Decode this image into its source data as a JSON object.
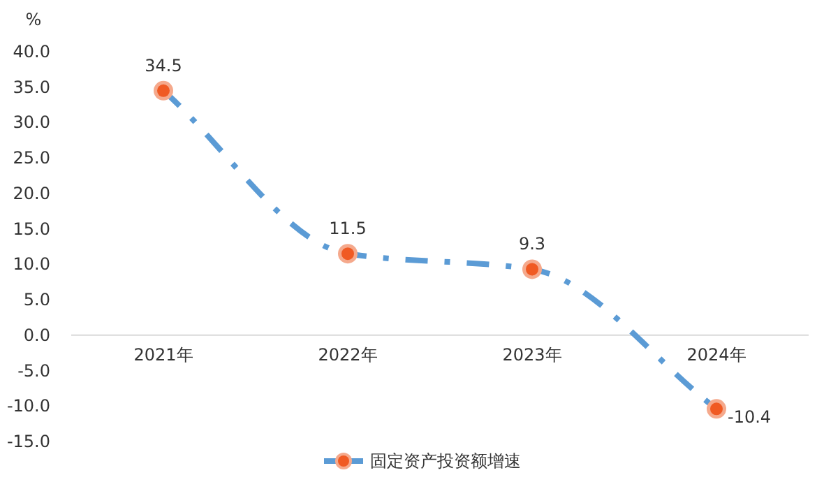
{
  "chart_data": {
    "type": "line",
    "ylabel": "%",
    "categories": [
      "2021年",
      "2022年",
      "2023年",
      "2024年"
    ],
    "series": [
      {
        "name": "固定资产投资额增速",
        "color": "#5b9bd5",
        "values": [
          34.5,
          11.5,
          9.3,
          -10.4
        ]
      }
    ],
    "ylim": [
      -15,
      40
    ],
    "yticks": [
      {
        "value": -15,
        "label": "-15.0"
      },
      {
        "value": -10,
        "label": "-10.0"
      },
      {
        "value": -5,
        "label": "-5.0"
      },
      {
        "value": 0,
        "label": "0.0"
      },
      {
        "value": 5,
        "label": "5.0"
      },
      {
        "value": 10,
        "label": "10.0"
      },
      {
        "value": 15,
        "label": "15.0"
      },
      {
        "value": 20,
        "label": "20.0"
      },
      {
        "value": 25,
        "label": "25.0"
      },
      {
        "value": 30,
        "label": "30.0"
      },
      {
        "value": 35,
        "label": "35.0"
      },
      {
        "value": 40,
        "label": "40.0"
      }
    ],
    "data_labels": true,
    "marker": "circle",
    "line_style": "dashdot",
    "legend": "bottom",
    "grid": false
  }
}
